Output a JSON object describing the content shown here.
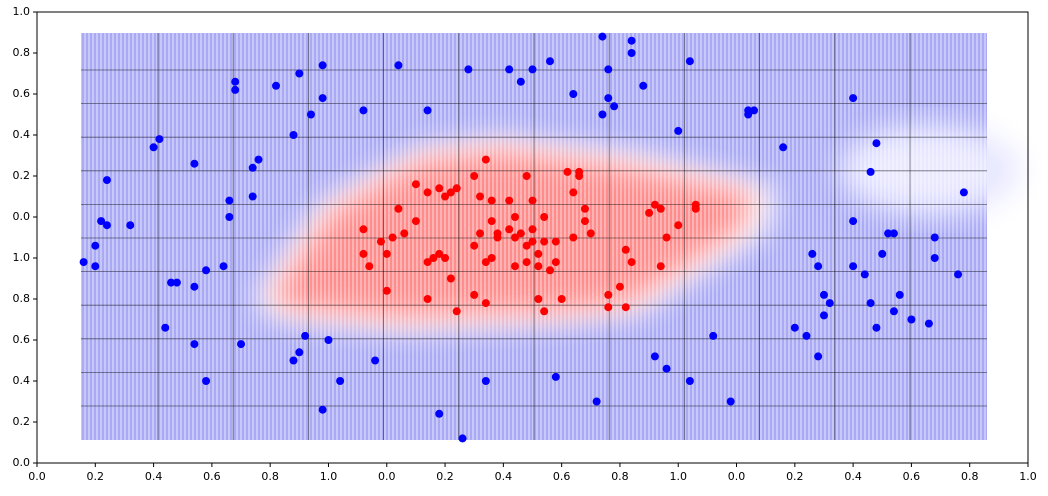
{
  "chart_data": {
    "type": "scatter",
    "xlim": [
      0,
      17
    ],
    "ylim": [
      0,
      11
    ],
    "xticks": [
      {
        "value": 0,
        "label": "0.0"
      },
      {
        "value": 1,
        "label": "0.2"
      },
      {
        "value": 2,
        "label": "0.4"
      },
      {
        "value": 3,
        "label": "0.6"
      },
      {
        "value": 4,
        "label": "0.8"
      },
      {
        "value": 5,
        "label": "1.0"
      },
      {
        "value": 6,
        "label": "0.0"
      },
      {
        "value": 7,
        "label": "0.2"
      },
      {
        "value": 8,
        "label": "0.4"
      },
      {
        "value": 9,
        "label": "0.6"
      },
      {
        "value": 10,
        "label": "0.8"
      },
      {
        "value": 11,
        "label": "1.0"
      },
      {
        "value": 12,
        "label": "0.0"
      },
      {
        "value": 13,
        "label": "0.2"
      },
      {
        "value": 14,
        "label": "0.4"
      },
      {
        "value": 15,
        "label": "0.6"
      },
      {
        "value": 16,
        "label": "0.8"
      },
      {
        "value": 17,
        "label": "1.0"
      }
    ],
    "yticks": [
      {
        "value": 0,
        "label": "0.0"
      },
      {
        "value": 1,
        "label": "0.2"
      },
      {
        "value": 2,
        "label": "0.4"
      },
      {
        "value": 3,
        "label": "0.6"
      },
      {
        "value": 4,
        "label": "0.8"
      },
      {
        "value": 5,
        "label": "1.0"
      },
      {
        "value": 6,
        "label": "0.0"
      },
      {
        "value": 7,
        "label": "0.2"
      },
      {
        "value": 8,
        "label": "0.4"
      },
      {
        "value": 9,
        "label": "0.6"
      },
      {
        "value": 10,
        "label": "0.8"
      },
      {
        "value": 11,
        "label": "1.0"
      }
    ],
    "series": [
      {
        "color": "#0000ff",
        "x": [
          0.8,
          1.0,
          1.0,
          1.1,
          1.2,
          1.2,
          1.6,
          2.0,
          2.1,
          2.3,
          2.4,
          2.2,
          2.7,
          2.7,
          2.7,
          2.9,
          2.9,
          3.2,
          3.3,
          3.3,
          3.4,
          3.4,
          3.5,
          3.7,
          3.7,
          3.8,
          4.1,
          4.4,
          4.5,
          4.7,
          4.9,
          4.9,
          4.5,
          4.4,
          4.6,
          5.0,
          4.9,
          5.2,
          5.6,
          5.8,
          6.2,
          6.7,
          6.9,
          7.4,
          7.3,
          7.7,
          8.1,
          8.3,
          8.5,
          8.8,
          8.9,
          9.2,
          9.6,
          9.7,
          9.7,
          9.8,
          9.8,
          9.9,
          10.2,
          10.2,
          10.4,
          10.6,
          10.8,
          11.0,
          11.2,
          11.2,
          11.6,
          11.9,
          12.2,
          12.2,
          12.3,
          12.8,
          13.0,
          13.2,
          13.3,
          13.4,
          13.4,
          13.5,
          13.5,
          13.6,
          14.0,
          14.0,
          14.0,
          14.2,
          14.3,
          14.3,
          14.4,
          14.4,
          14.5,
          14.6,
          14.7,
          14.7,
          14.8,
          15.0,
          15.3,
          15.4,
          15.4,
          15.8,
          15.9
        ],
        "values": [
          4.9,
          5.3,
          4.8,
          5.9,
          6.9,
          5.8,
          5.8,
          7.7,
          7.9,
          4.4,
          4.4,
          3.3,
          7.3,
          4.3,
          2.9,
          2.0,
          4.7,
          4.8,
          6.4,
          6.0,
          9.1,
          9.3,
          2.9,
          7.2,
          6.5,
          7.4,
          9.2,
          8.0,
          9.5,
          8.5,
          8.9,
          9.7,
          2.7,
          2.5,
          3.1,
          3.0,
          1.3,
          2.0,
          8.6,
          2.5,
          9.7,
          8.6,
          1.2,
          9.6,
          0.6,
          2.0,
          9.6,
          9.3,
          9.6,
          9.8,
          2.1,
          9.0,
          1.5,
          8.5,
          10.4,
          9.6,
          8.9,
          8.7,
          10.0,
          10.3,
          9.2,
          2.6,
          2.3,
          8.1,
          9.8,
          2.0,
          3.1,
          1.5,
          8.6,
          8.5,
          8.6,
          7.7,
          3.3,
          3.1,
          5.1,
          2.6,
          4.8,
          3.6,
          4.1,
          3.9,
          8.9,
          5.9,
          4.8,
          4.6,
          3.9,
          7.1,
          3.3,
          7.8,
          5.1,
          5.6,
          3.7,
          5.6,
          4.1,
          3.5,
          3.4,
          5.5,
          5.0,
          4.6,
          6.6
        ]
      },
      {
        "color": "#ff0000",
        "x": [
          5.6,
          5.6,
          5.7,
          6.0,
          6.0,
          5.9,
          6.1,
          6.2,
          6.3,
          6.5,
          6.5,
          6.7,
          6.7,
          6.7,
          6.8,
          6.9,
          6.9,
          7.0,
          7.1,
          7.1,
          7.2,
          7.2,
          7.0,
          7.5,
          7.5,
          7.5,
          7.6,
          7.6,
          7.7,
          7.7,
          7.7,
          7.8,
          7.8,
          7.8,
          7.9,
          7.9,
          8.1,
          8.1,
          8.2,
          8.2,
          8.2,
          8.3,
          8.4,
          8.4,
          8.4,
          8.5,
          8.5,
          8.5,
          8.6,
          8.6,
          8.6,
          8.7,
          8.7,
          8.7,
          8.8,
          8.9,
          8.9,
          9.0,
          9.1,
          9.2,
          9.2,
          9.3,
          9.3,
          9.4,
          9.4,
          9.5,
          9.8,
          9.8,
          10.0,
          10.1,
          10.1,
          10.2,
          10.5,
          10.6,
          10.7,
          10.7,
          10.8,
          11.0,
          11.3,
          11.3
        ],
        "values": [
          5.7,
          5.1,
          4.8,
          5.1,
          4.2,
          5.4,
          5.5,
          6.2,
          5.6,
          6.8,
          5.9,
          4.0,
          6.6,
          4.9,
          5.0,
          6.7,
          5.1,
          6.5,
          4.5,
          6.6,
          3.7,
          6.7,
          5.0,
          5.3,
          7.0,
          4.1,
          5.6,
          6.5,
          7.4,
          3.9,
          4.9,
          6.4,
          5.0,
          5.9,
          5.6,
          5.5,
          6.4,
          5.7,
          5.5,
          6.0,
          4.8,
          5.6,
          5.3,
          7.0,
          4.9,
          5.4,
          6.4,
          5.7,
          5.1,
          4.8,
          4.0,
          5.4,
          6.0,
          3.7,
          4.7,
          5.4,
          4.9,
          4.0,
          7.1,
          5.5,
          6.6,
          7.0,
          7.1,
          6.2,
          5.9,
          5.6,
          3.8,
          4.1,
          4.3,
          3.8,
          5.2,
          4.9,
          6.1,
          6.3,
          6.2,
          4.8,
          5.5,
          5.8,
          6.3,
          6.2
        ]
      }
    ]
  }
}
